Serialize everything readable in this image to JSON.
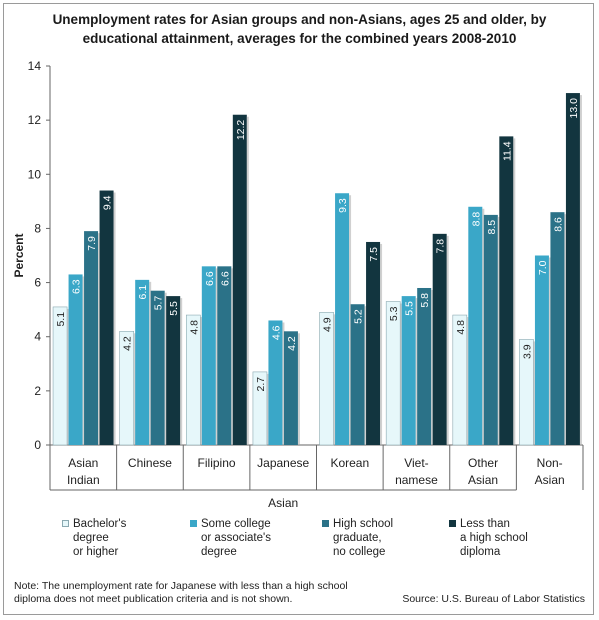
{
  "title_lines": [
    "Unemployment rates for Asian groups and non-Asians, ages 25 and older, by",
    "educational attainment, averages for the combined years 2008-2010"
  ],
  "chart_data": {
    "type": "bar",
    "categories": [
      "Asian\nIndian",
      "Chinese",
      "Filipino",
      "Japanese",
      "Korean",
      "Viet-\nnamese",
      "Other\nAsian",
      "Non-\nAsian"
    ],
    "group_label": "Asian",
    "ylabel": "Percent",
    "ylim": [
      0,
      14
    ],
    "yticks": [
      0,
      2,
      4,
      6,
      8,
      10,
      12,
      14
    ],
    "grid": false,
    "legend_position": "bottom",
    "series": [
      {
        "name": "Bachelor's\ndegree\nor higher",
        "color": "#e6f7fa",
        "values": [
          5.1,
          4.2,
          4.8,
          2.7,
          4.9,
          5.3,
          4.8,
          3.9
        ]
      },
      {
        "name": "Some college\nor associate's\ndegree",
        "color": "#3aa7c8",
        "values": [
          6.3,
          6.1,
          6.6,
          4.6,
          9.3,
          5.5,
          8.8,
          7.0
        ]
      },
      {
        "name": "High school\ngraduate,\nno college",
        "color": "#2b7288",
        "values": [
          7.9,
          5.7,
          6.6,
          4.2,
          5.2,
          5.8,
          8.5,
          8.6
        ]
      },
      {
        "name": "Less than\na high school\ndiploma",
        "color": "#12353f",
        "values": [
          9.4,
          5.5,
          12.2,
          null,
          7.5,
          7.8,
          11.4,
          13.0
        ]
      }
    ]
  },
  "note": "Note: The unemployment rate for Japanese with less than a high school\ndiploma does not meet publication criteria and is not shown.",
  "source": "Source: U.S. Bureau of Labor Statistics"
}
